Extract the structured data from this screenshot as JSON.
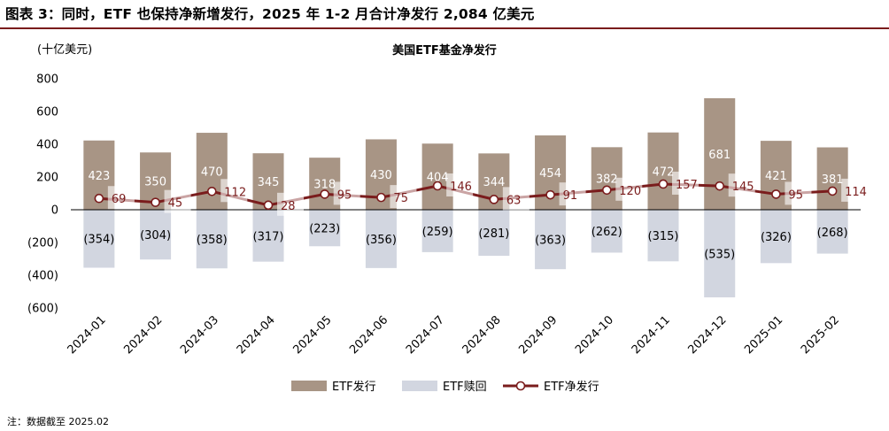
{
  "figure_title": "图表 3：同时，ETF 也保持净新增发行，2025 年 1-2 月合计净发行 2,084 亿美元",
  "note": "注：数据截至 2025.02",
  "colors": {
    "issue": "#a89585",
    "redeem": "#d2d6e0",
    "net": "#7a1c1c",
    "accent": "#7a1c1c"
  },
  "chart_data": {
    "type": "bar",
    "title": "美国ETF基金净发行",
    "unit_label": "(十亿美元)",
    "ylim": [
      -600,
      800
    ],
    "yticks": [
      800,
      600,
      400,
      200,
      0,
      -200,
      -400,
      -600
    ],
    "ytick_labels": [
      "800",
      "600",
      "400",
      "200",
      "0",
      "(200)",
      "(400)",
      "(600)"
    ],
    "categories": [
      "2024-01",
      "2024-02",
      "2024-03",
      "2024-04",
      "2024-05",
      "2024-06",
      "2024-07",
      "2024-08",
      "2024-09",
      "2024-10",
      "2024-11",
      "2024-12",
      "2025-01",
      "2025-02"
    ],
    "series": [
      {
        "name": "ETF发行",
        "type": "bar",
        "values": [
          423,
          350,
          470,
          345,
          318,
          430,
          404,
          344,
          454,
          382,
          472,
          681,
          421,
          381
        ],
        "labels": [
          "423",
          "350",
          "470",
          "345",
          "318",
          "430",
          "404",
          "344",
          "454",
          "382",
          "472",
          "681",
          "421",
          "381"
        ]
      },
      {
        "name": "ETF赎回",
        "type": "bar",
        "values": [
          -354,
          -304,
          -358,
          -317,
          -223,
          -356,
          -259,
          -281,
          -363,
          -262,
          -315,
          -535,
          -326,
          -268
        ],
        "labels": [
          "(354)",
          "(304)",
          "(358)",
          "(317)",
          "(223)",
          "(356)",
          "(259)",
          "(281)",
          "(363)",
          "(262)",
          "(315)",
          "(535)",
          "(326)",
          "(268)"
        ]
      },
      {
        "name": "ETF净发行",
        "type": "line",
        "values": [
          69,
          45,
          112,
          28,
          95,
          75,
          146,
          63,
          91,
          120,
          157,
          145,
          95,
          114
        ],
        "labels": [
          "69",
          "45",
          "112",
          "28",
          "95",
          "75",
          "146",
          "63",
          "91",
          "120",
          "157",
          "145",
          "95",
          "114"
        ]
      }
    ],
    "legend_position": "bottom",
    "grid": false
  }
}
